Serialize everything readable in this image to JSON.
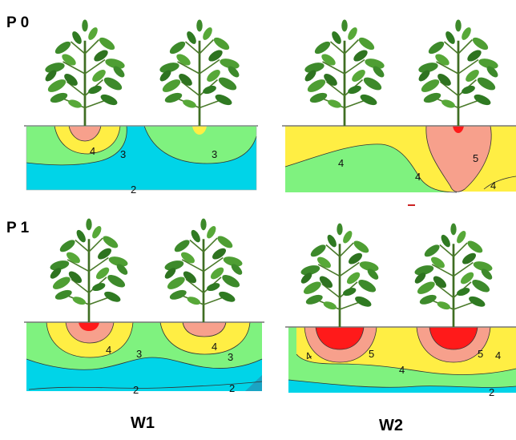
{
  "row_labels": [
    "P 0",
    "P 1"
  ],
  "column_labels": [
    "W1",
    "W2"
  ],
  "contour_colors": {
    "2": "#00d4e8",
    "3": "#7ff27f",
    "4": "#ffee44",
    "5": "#f7a08c",
    "6": "#ff1a1a"
  },
  "panels": {
    "p0w1": {
      "labels": [
        "4",
        "3",
        "3",
        "2"
      ]
    },
    "p0w2": {
      "labels": [
        "4",
        "4",
        "5",
        "4"
      ]
    },
    "p1w1": {
      "labels": [
        "4",
        "3",
        "4",
        "3",
        "2",
        "2"
      ]
    },
    "p1w2": {
      "labels": [
        "4",
        "5",
        "4",
        "5",
        "4",
        "2"
      ]
    }
  }
}
